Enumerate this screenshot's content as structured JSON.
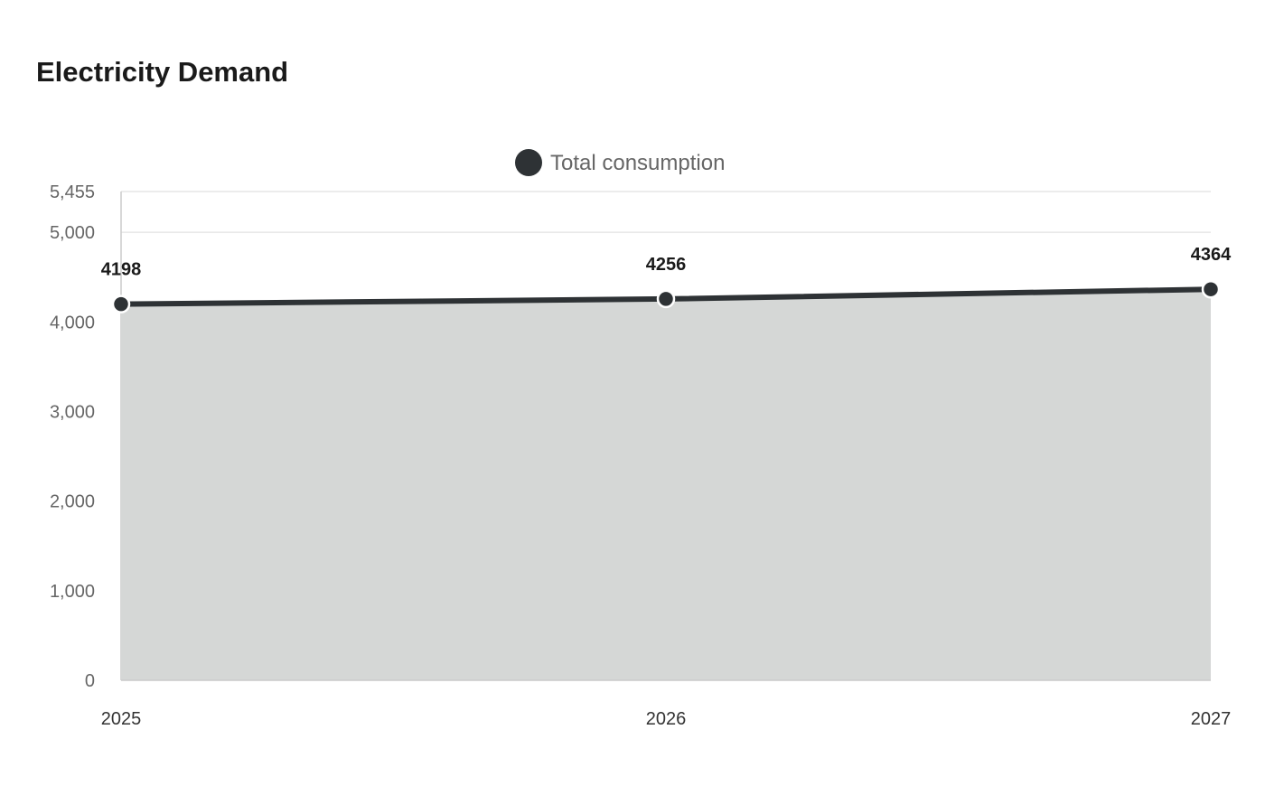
{
  "title": "Electricity Demand",
  "chart_data": {
    "type": "area",
    "title": "Electricity Demand",
    "categories": [
      "2025",
      "2026",
      "2027"
    ],
    "series": [
      {
        "name": "Total consumption",
        "values": [
          4198,
          4256,
          4364
        ]
      }
    ],
    "ylim": [
      0,
      5455
    ],
    "yticks": [
      0,
      1000,
      2000,
      3000,
      4000,
      5000,
      5455
    ],
    "ytick_labels": [
      "0",
      "1,000",
      "2,000",
      "3,000",
      "4,000",
      "5,000",
      "5,455"
    ],
    "xlabel": "",
    "ylabel": "",
    "grid": true,
    "legend_position": "top-center",
    "colors": {
      "line": "#2e3235",
      "area": "#d5d7d6",
      "grid": "#e6e6e6",
      "axis": "#cccccc"
    }
  }
}
